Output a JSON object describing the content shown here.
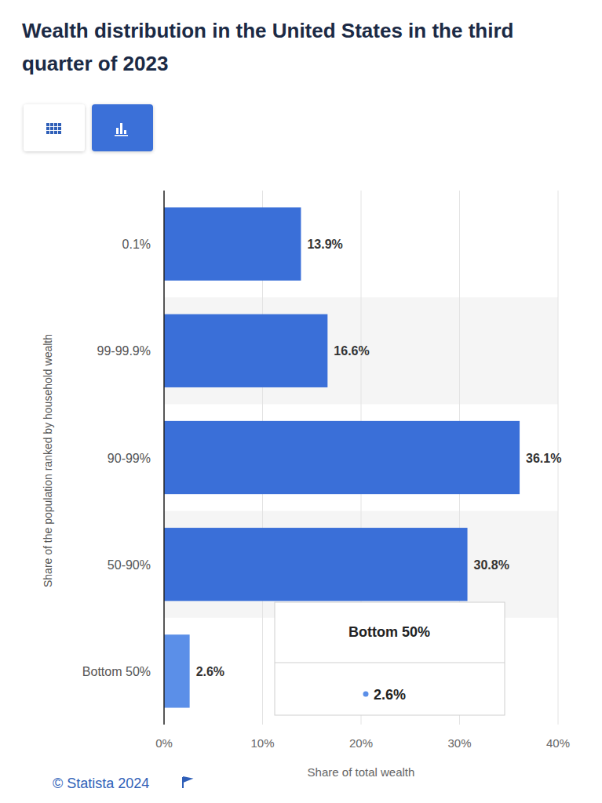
{
  "chart_data": {
    "type": "bar",
    "orientation": "horizontal",
    "title": "Wealth distribution in the United States in the third quarter of 2023",
    "categories": [
      "0.1%",
      "99-99.9%",
      "90-99%",
      "50-90%",
      "Bottom 50%"
    ],
    "values": [
      13.9,
      16.6,
      36.1,
      30.8,
      2.6
    ],
    "value_labels": [
      "13.9%",
      "16.6%",
      "36.1%",
      "30.8%",
      "2.6%"
    ],
    "colors": [
      "#3a6fd8",
      "#3a6fd8",
      "#3a6fd8",
      "#3a6fd8",
      "#5b8fe8"
    ],
    "xlim": [
      0,
      40
    ],
    "xticks": [
      {
        "value": 0,
        "label": "0%"
      },
      {
        "value": 10,
        "label": "10%"
      },
      {
        "value": 20,
        "label": "20%"
      },
      {
        "value": 30,
        "label": "30%"
      },
      {
        "value": 40,
        "label": "40%"
      }
    ],
    "x_label": "Share of total wealth",
    "y_label": "Share of the population ranked by household wealth",
    "data_labels": true,
    "grid": true,
    "source": "© Statista 2024"
  }
}
